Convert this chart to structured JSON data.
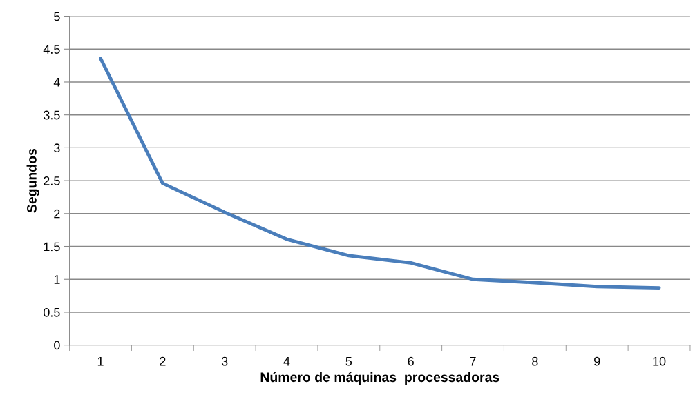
{
  "chart_data": {
    "type": "line",
    "xlabel": "Número de máquinas  processadoras",
    "ylabel": "Segundos",
    "categories": [
      "1",
      "2",
      "3",
      "4",
      "5",
      "6",
      "7",
      "8",
      "9",
      "10"
    ],
    "series": [
      {
        "color": "#4a7ebb",
        "values": [
          4.36,
          2.46,
          2.02,
          1.61,
          1.36,
          1.25,
          1.0,
          0.95,
          0.89,
          0.87
        ]
      }
    ],
    "ylim": [
      0,
      5
    ],
    "yticks": [
      0,
      0.5,
      1,
      1.5,
      2,
      2.5,
      3,
      3.5,
      4,
      4.5,
      5
    ],
    "grid": "y",
    "marker": "none",
    "line_style": "solid"
  }
}
